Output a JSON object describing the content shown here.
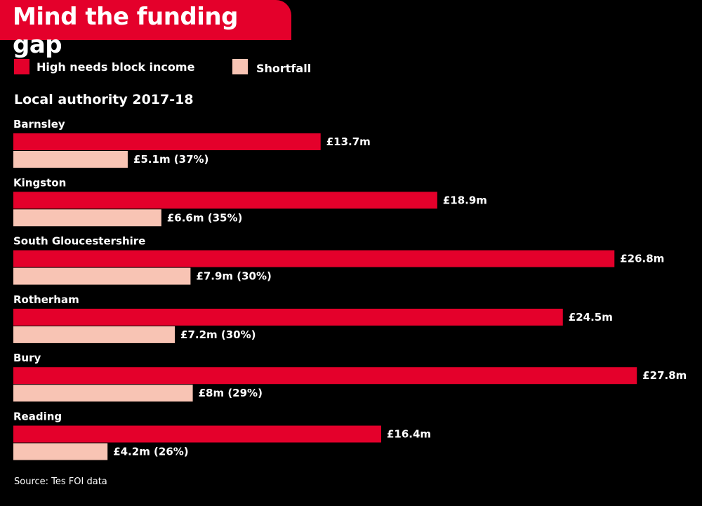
{
  "chart_data": {
    "type": "bar",
    "orientation": "horizontal",
    "title": "Mind the funding gap",
    "subtitle": "Local authority 2017-18",
    "source": "Source: Tes FOI data",
    "categories": [
      "Barnsley",
      "Kingston",
      "South Gloucestershire",
      "Rotherham",
      "Bury",
      "Reading"
    ],
    "series": [
      {
        "name": "High needs block income",
        "color": "#e4002b",
        "values": [
          13.7,
          18.9,
          26.8,
          24.5,
          27.8,
          16.4
        ],
        "labels": [
          "£13.7m",
          "£18.9m",
          "£26.8m",
          "£24.5m",
          "£27.8m",
          "£16.4m"
        ]
      },
      {
        "name": "Shortfall",
        "color": "#f8c4b4",
        "values": [
          5.1,
          6.6,
          7.9,
          7.2,
          8,
          4.2
        ],
        "labels": [
          "£5.1m (37%)",
          "£6.6m (35%)",
          "£7.9m (30%)",
          "£7.2m (30%)",
          "£8m (29%)",
          "£4.2m (26%)"
        ]
      }
    ],
    "unit": "£m",
    "legend": "top-left",
    "grid": false
  }
}
